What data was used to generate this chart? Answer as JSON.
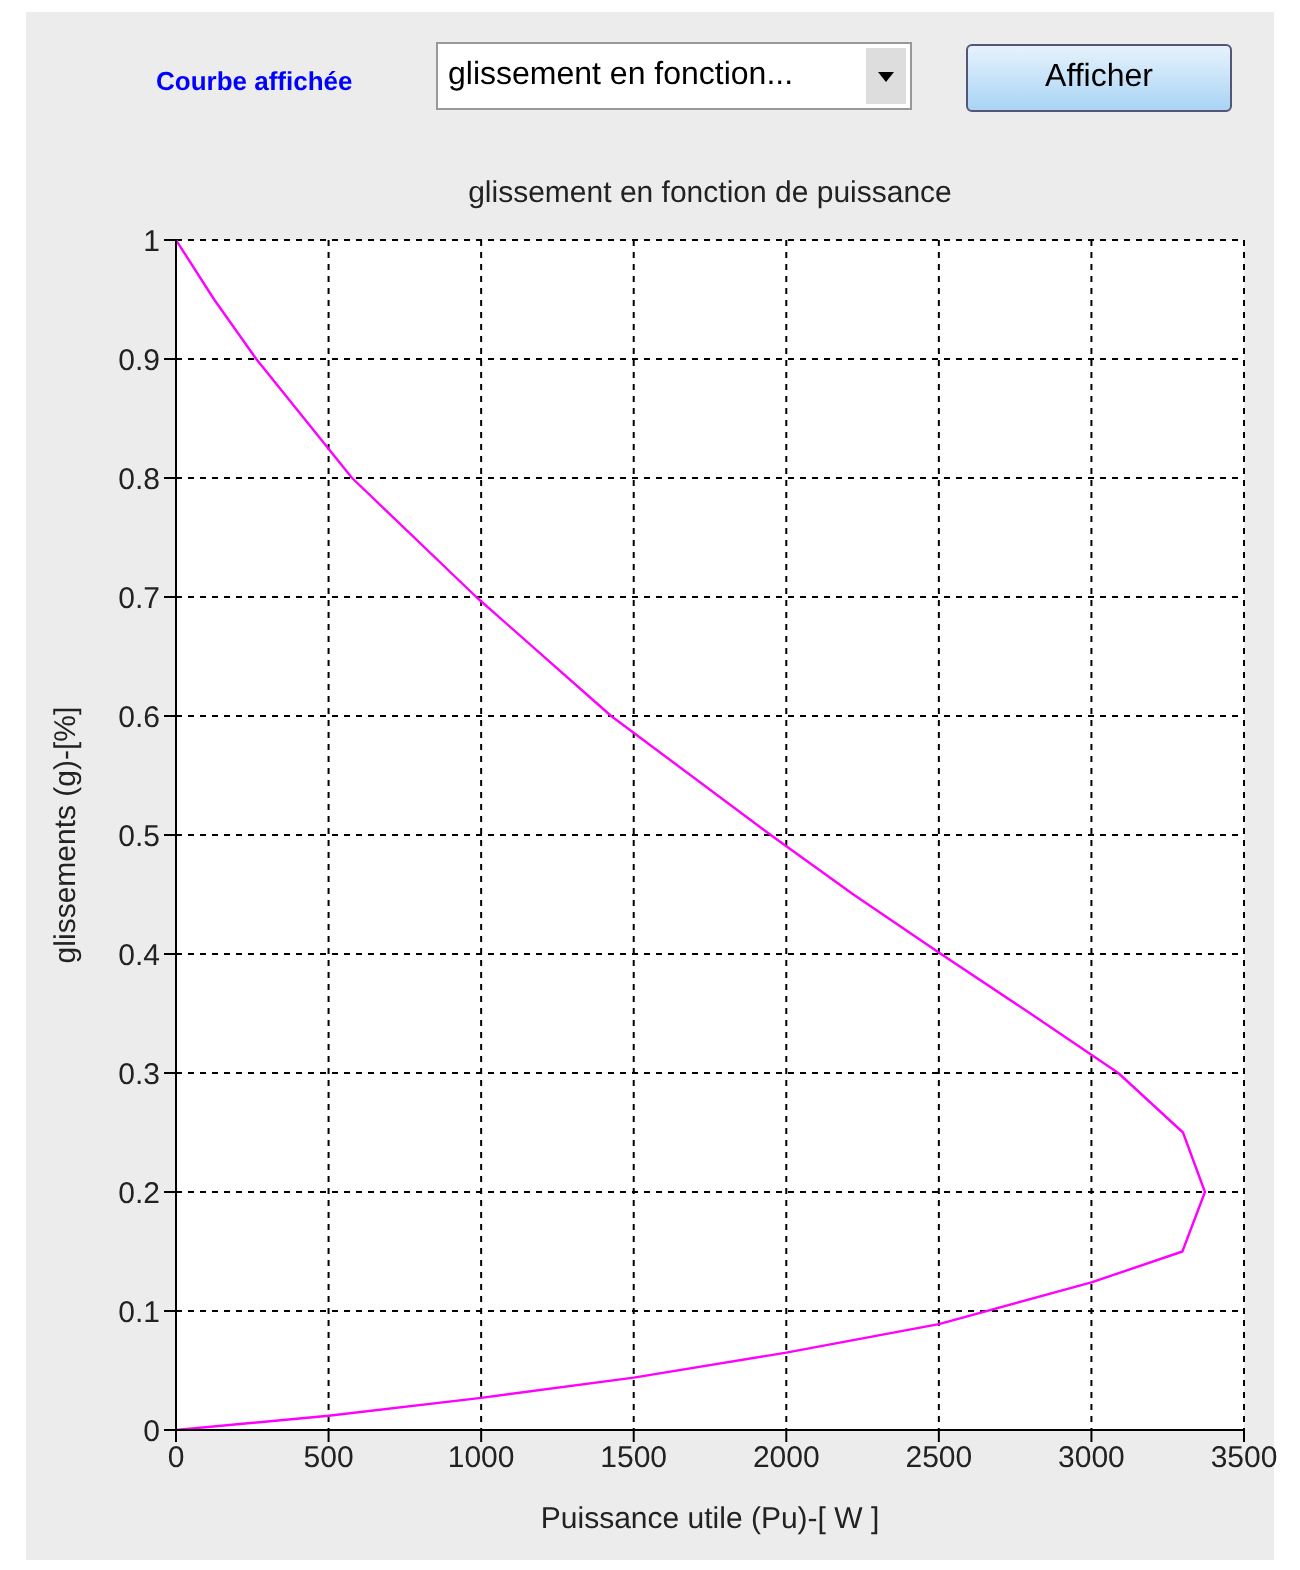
{
  "chart_data": {
    "type": "line",
    "title": "glissement en fonction de puissance",
    "xlabel": "Puissance utile (Pu)-[ W ]",
    "ylabel": "glissements (g)-[%]",
    "annotations": [
      "Courbe affichée",
      "glissement en fonction...",
      "Afficher"
    ],
    "x": [
      0,
      125,
      263,
      577,
      984,
      1426,
      1949,
      2220,
      2507,
      2800,
      3088,
      3300,
      3372,
      3298,
      3000,
      2500,
      2000,
      1500,
      1000,
      500,
      0
    ],
    "values": [
      1,
      0.95,
      0.9,
      0.8,
      0.7,
      0.6,
      0.5,
      0.45,
      0.4,
      0.35,
      0.3,
      0.25,
      0.2,
      0.15,
      0.124,
      0.089,
      0.065,
      0.044,
      0.027,
      0.012,
      0
    ],
    "color": "#ff00ff",
    "xlim": [
      0,
      3500
    ],
    "xticks": [
      0,
      500,
      1000,
      1500,
      2000,
      2500,
      3000,
      3500
    ],
    "ylim": [
      0,
      1
    ],
    "yticks": [
      0,
      0.1,
      0.2,
      0.3,
      0.4,
      0.5,
      0.6,
      0.7,
      0.8,
      0.9,
      1
    ],
    "grid": true,
    "legend": false,
    "marker": "none",
    "line_style": "solid"
  }
}
